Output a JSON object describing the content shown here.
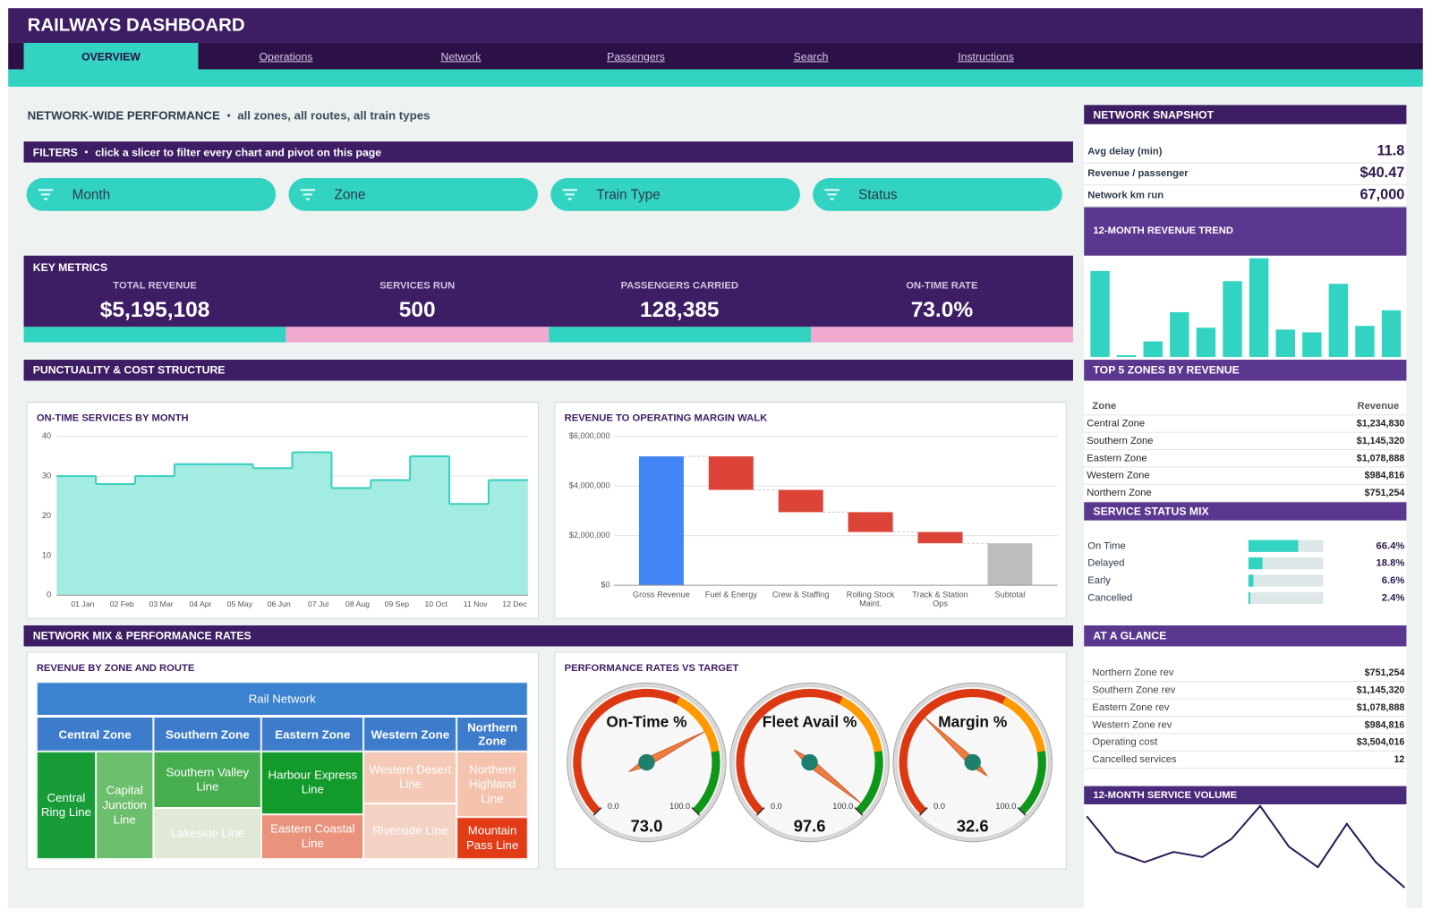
{
  "header": {
    "title": "RAILWAYS DASHBOARD",
    "tabs": [
      "OVERVIEW",
      "Operations",
      "Network",
      "Passengers",
      "Search",
      "Instructions"
    ]
  },
  "overview": {
    "title": "NETWORK-WIDE PERFORMANCE",
    "note": "all zones, all routes, all train types"
  },
  "filters": {
    "title": "FILTERS",
    "note": "click a slicer to filter every chart and pivot on this page",
    "slicers": [
      "Month",
      "Zone",
      "Train Type",
      "Status"
    ]
  },
  "key_metrics": {
    "title": "KEY METRICS",
    "items": [
      {
        "label": "TOTAL REVENUE",
        "value": "$5,195,108"
      },
      {
        "label": "SERVICES RUN",
        "value": "500"
      },
      {
        "label": "PASSENGERS CARRIED",
        "value": "128,385"
      },
      {
        "label": "ON-TIME RATE",
        "value": "73.0%"
      }
    ]
  },
  "sections": [
    "PUNCTUALITY & COST STRUCTURE",
    "NETWORK MIX & PERFORMANCE RATES"
  ],
  "snapshot": {
    "title": "NETWORK SNAPSHOT",
    "rows": [
      {
        "label": "Avg delay (min)",
        "value": "11.8"
      },
      {
        "label": "Revenue / passenger",
        "value": "$40.47"
      },
      {
        "label": "Network km run",
        "value": "67,000"
      }
    ]
  },
  "top_zones": {
    "title": "TOP 5 ZONES BY REVENUE",
    "columns": [
      "Zone",
      "Revenue"
    ],
    "rows": [
      [
        "Central Zone",
        "$1,234,830"
      ],
      [
        "Southern Zone",
        "$1,145,320"
      ],
      [
        "Eastern Zone",
        "$1,078,888"
      ],
      [
        "Western Zone",
        "$984,816"
      ],
      [
        "Northern Zone",
        "$751,254"
      ]
    ]
  },
  "at_a_glance": {
    "title": "AT A GLANCE",
    "rows": [
      [
        "Northern Zone rev",
        "$751,254"
      ],
      [
        "Southern Zone rev",
        "$1,145,320"
      ],
      [
        "Eastern Zone rev",
        "$1,078,888"
      ],
      [
        "Western Zone rev",
        "$984,816"
      ],
      [
        "Operating cost",
        "$3,504,016"
      ],
      [
        "Cancelled services",
        "12"
      ]
    ]
  },
  "chart_data": [
    {
      "type": "step-area",
      "title": "ON-TIME SERVICES BY MONTH",
      "categories": [
        "01 Jan",
        "02 Feb",
        "03 Mar",
        "04 Apr",
        "05 May",
        "06 Jun",
        "07 Jul",
        "08 Aug",
        "09 Sep",
        "10 Oct",
        "11 Nov",
        "12 Dec"
      ],
      "values": [
        30,
        28,
        30,
        33,
        33,
        32,
        36,
        27,
        29,
        35,
        23,
        29
      ],
      "color": "#a3ece1",
      "line_color": "#3ccfbf",
      "ylim": [
        0,
        40
      ],
      "yticks": [
        0,
        10,
        20,
        30,
        40
      ],
      "grid": true
    },
    {
      "type": "waterfall",
      "title": "REVENUE TO OPERATING MARGIN WALK",
      "categories": [
        "Gross Revenue",
        "Fuel & Energy",
        "Crew & Staffing",
        "Rolling Stock Maint.",
        "Track & Station Ops",
        "Subtotal"
      ],
      "values": [
        5195108,
        -1350000,
        -900000,
        -800000,
        -454016,
        1691092
      ],
      "colors": {
        "total": "#4285f4",
        "decrease": "#db4437",
        "increase": "#0f9d58",
        "subtotal": "#bdbdbd"
      },
      "ylim": [
        0,
        6000000
      ],
      "yticks": [
        {
          "value": 0,
          "label": "$0"
        },
        {
          "value": 2000000,
          "label": "$2,000,000"
        },
        {
          "value": 4000000,
          "label": "$4,000,000"
        },
        {
          "value": 6000000,
          "label": "$6,000,000"
        }
      ],
      "grid": true
    },
    {
      "type": "treemap",
      "title": "REVENUE BY ZONE AND ROUTE",
      "root": "Rail Network",
      "root_color": "#3b82d0",
      "zone_color": "#3d7ccb",
      "zones": [
        {
          "name": "Central Zone",
          "routes": [
            {
              "name": "Central Ring Line",
              "value": 627000,
              "color": "#179c38"
            },
            {
              "name": "Capital Junction Line",
              "value": 608000,
              "color": "#6cbf6c"
            }
          ]
        },
        {
          "name": "Southern Zone",
          "routes": [
            {
              "name": "Southern Valley Line",
              "value": 600000,
              "color": "#47ae4f"
            },
            {
              "name": "Lakeside Line",
              "value": 545000,
              "color": "#dfe9d6"
            }
          ]
        },
        {
          "name": "Eastern Zone",
          "routes": [
            {
              "name": "Harbour Express Line",
              "value": 630000,
              "color": "#129a2a"
            },
            {
              "name": "Eastern Coastal Line",
              "value": 449000,
              "color": "#e9937d"
            }
          ]
        },
        {
          "name": "Western Zone",
          "routes": [
            {
              "name": "Western Desert Line",
              "value": 475000,
              "color": "#f4c9b5"
            },
            {
              "name": "Riverside Line",
              "value": 510000,
              "color": "#f3d2c3"
            }
          ]
        },
        {
          "name": "Northern Zone",
          "routes": [
            {
              "name": "Northern Highland Line",
              "value": 460000,
              "color": "#f5c3ad"
            },
            {
              "name": "Mountain Pass Line",
              "value": 291000,
              "color": "#e23c17"
            }
          ]
        }
      ]
    },
    {
      "type": "gauge",
      "title": "PERFORMANCE RATES VS TARGET",
      "categories": [
        "On-Time %",
        "Fleet Avail %",
        "Margin %"
      ],
      "values": [
        73,
        97.6,
        32.6
      ],
      "value_labels": [
        "73.0",
        "97.6",
        "32.6"
      ],
      "ylim": [
        0,
        100
      ],
      "ticks": [
        {
          "value": 0,
          "label": "0.0"
        },
        {
          "value": 100,
          "label": "100.0"
        }
      ],
      "bands": [
        {
          "from": 0,
          "to": 60,
          "color": "#dc3912"
        },
        {
          "from": 60,
          "to": 80,
          "color": "#ff9900"
        },
        {
          "from": 80,
          "to": 100,
          "color": "#109618"
        }
      ],
      "needle_color": "#f07b3f"
    },
    {
      "type": "bar",
      "title": "12-MONTH REVENUE TREND",
      "values": [
        805000,
        17000,
        146000,
        419000,
        274000,
        710000,
        924000,
        257000,
        231000,
        685000,
        291000,
        437000
      ],
      "color": "#33d3c2",
      "ylim": [
        0,
        940000
      ]
    },
    {
      "type": "progress",
      "title": "SERVICE STATUS MIX",
      "categories": [
        "On Time",
        "Delayed",
        "Early",
        "Cancelled"
      ],
      "values": [
        66.4,
        18.8,
        6.6,
        2.4
      ],
      "value_labels": [
        "66.4%",
        "18.8%",
        "6.6%",
        "2.4%"
      ],
      "xlim": [
        0,
        100
      ],
      "color": "#33d3c2",
      "track_color": "#dde7e7"
    },
    {
      "type": "line",
      "title": "12-MONTH SERVICE VOLUME",
      "values": [
        54,
        40,
        36,
        40,
        38,
        45,
        58,
        42,
        34,
        51,
        36,
        26
      ],
      "color": "#2d1a5a",
      "ylim": [
        25,
        59
      ]
    }
  ]
}
